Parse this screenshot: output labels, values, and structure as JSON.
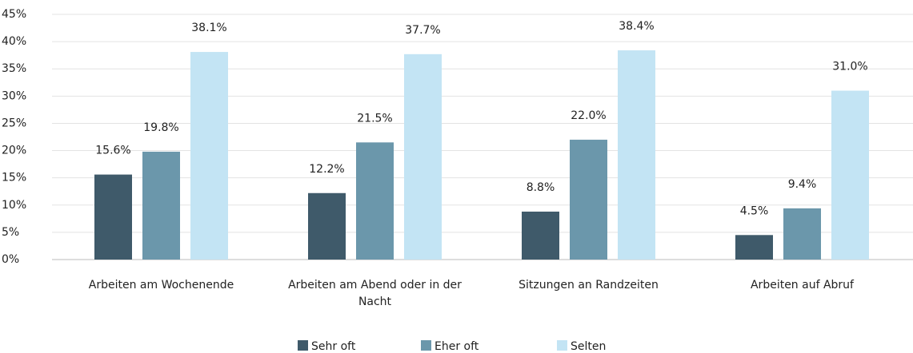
{
  "chart_data": {
    "type": "bar",
    "categories": [
      "Arbeiten am Wochenende",
      "Arbeiten am Abend oder in der Nacht",
      "Sitzungen an Randzeiten",
      "Arbeiten auf Abruf"
    ],
    "series": [
      {
        "name": "Sehr oft",
        "color": "#3f5a6a",
        "values": [
          15.6,
          12.2,
          8.8,
          4.5
        ],
        "value_labels": [
          "15.6%",
          "12.2%",
          "8.8%",
          "4.5%"
        ]
      },
      {
        "name": "Eher oft",
        "color": "#6b97ab",
        "values": [
          19.8,
          21.5,
          22.0,
          9.4
        ],
        "value_labels": [
          "19.8%",
          "21.5%",
          "22.0%",
          "9.4%"
        ]
      },
      {
        "name": "Selten",
        "color": "#c3e4f4",
        "values": [
          38.1,
          37.7,
          38.4,
          31.0
        ],
        "value_labels": [
          "38.1%",
          "37.7%",
          "38.4%",
          "31.0%"
        ]
      }
    ],
    "ylim": [
      0,
      45
    ],
    "yticks": [
      {
        "value": 0,
        "label": "0%"
      },
      {
        "value": 5,
        "label": "5%"
      },
      {
        "value": 10,
        "label": "10%"
      },
      {
        "value": 15,
        "label": "15%"
      },
      {
        "value": 20,
        "label": "20%"
      },
      {
        "value": 25,
        "label": "25%"
      },
      {
        "value": 30,
        "label": "30%"
      },
      {
        "value": 35,
        "label": "35%"
      },
      {
        "value": 40,
        "label": "40%"
      },
      {
        "value": 45,
        "label": "45%"
      }
    ],
    "grid": true,
    "legend": "bottom"
  }
}
